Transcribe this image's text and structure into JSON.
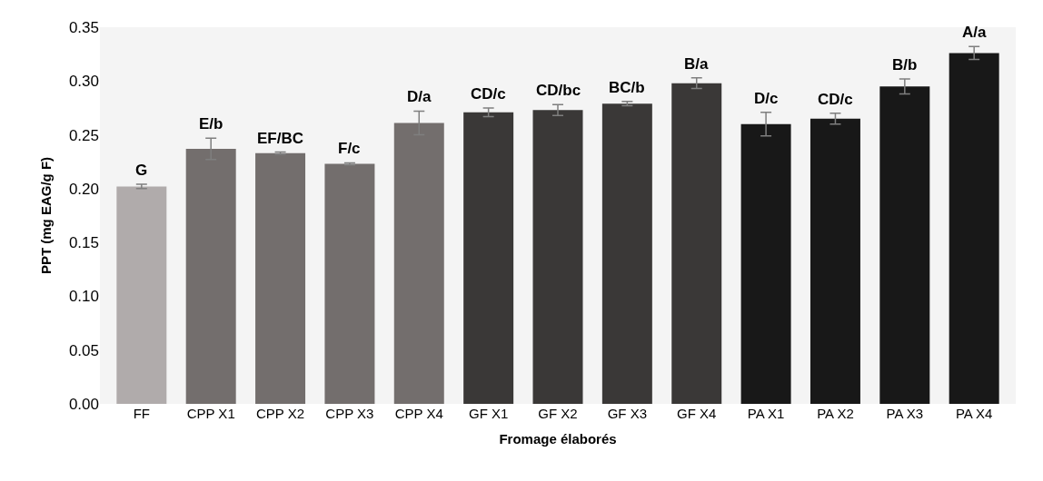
{
  "chart_data": {
    "type": "bar",
    "xlabel": "Fromage élaborés",
    "ylabel": "PPT (mg EAG/g F)",
    "categories": [
      "FF",
      "CPP X1",
      "CPP X2",
      "CPP X3",
      "CPP X4",
      "GF X1",
      "GF X2",
      "GF X3",
      "GF X4",
      "PA X1",
      "PA X2",
      "PA X3",
      "PA X4"
    ],
    "values": [
      0.202,
      0.237,
      0.233,
      0.223,
      0.261,
      0.271,
      0.273,
      0.279,
      0.298,
      0.26,
      0.265,
      0.295,
      0.326
    ],
    "errors": [
      0.002,
      0.01,
      0.001,
      0.001,
      0.011,
      0.004,
      0.005,
      0.002,
      0.005,
      0.011,
      0.005,
      0.007,
      0.006
    ],
    "colors": [
      "#b0abab",
      "#736e6d",
      "#736e6d",
      "#736e6d",
      "#736e6d",
      "#3a3837",
      "#3a3837",
      "#3a3837",
      "#3a3837",
      "#181818",
      "#181818",
      "#181818",
      "#181818"
    ],
    "value_labels": [
      "G",
      "E/b",
      "EF/BC",
      "F/c",
      "D/a",
      "CD/c",
      "CD/bc",
      "BC/b",
      "B/a",
      "D/c",
      "CD/c",
      "B/b",
      "A/a"
    ],
    "ylim": [
      0,
      0.35
    ],
    "yticks": [
      {
        "value": 0,
        "label": "0.00"
      },
      {
        "value": 0.05,
        "label": "0.05"
      },
      {
        "value": 0.1,
        "label": "0.10"
      },
      {
        "value": 0.15,
        "label": "0.15"
      },
      {
        "value": 0.2,
        "label": "0.20"
      },
      {
        "value": 0.25,
        "label": "0.25"
      },
      {
        "value": 0.3,
        "label": "0.30"
      },
      {
        "value": 0.35,
        "label": "0.35"
      }
    ],
    "grid": false,
    "legend": false
  }
}
